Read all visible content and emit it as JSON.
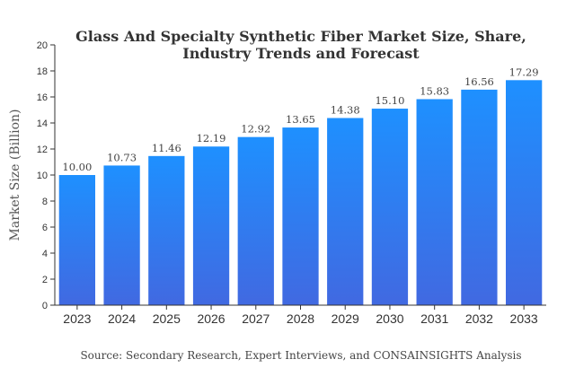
{
  "chart_data": {
    "type": "bar",
    "title_lines": [
      "Glass And Specialty Synthetic Fiber Market Size, Share,",
      "Industry Trends and Forecast"
    ],
    "ylabel": "Market Size (Billion)",
    "categories": [
      "2023",
      "2024",
      "2025",
      "2026",
      "2027",
      "2028",
      "2029",
      "2030",
      "2031",
      "2032",
      "2033"
    ],
    "values": [
      10.0,
      10.73,
      11.46,
      12.19,
      12.92,
      13.65,
      14.38,
      15.1,
      15.83,
      16.56,
      17.29
    ],
    "value_labels": [
      "10.00",
      "10.73",
      "11.46",
      "12.19",
      "12.92",
      "13.65",
      "14.38",
      "15.10",
      "15.83",
      "16.56",
      "17.29"
    ],
    "ylim": [
      0,
      20
    ],
    "yticks": [
      "0",
      "2",
      "4",
      "6",
      "8",
      "10",
      "12",
      "14",
      "16",
      "18",
      "20"
    ],
    "grid": false,
    "bar_color_top": "#1e90ff",
    "bar_color_bottom": "#4169e1"
  },
  "source": "Source: Secondary Research, Expert Interviews, and CONSAINSIGHTS Analysis"
}
